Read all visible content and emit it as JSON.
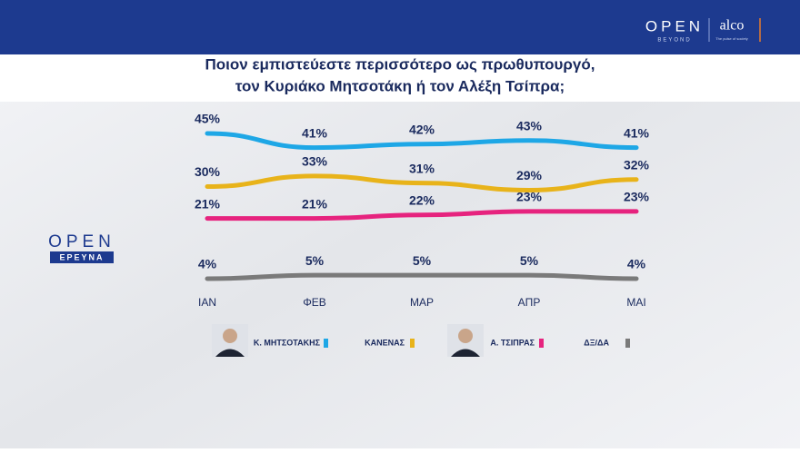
{
  "branding": {
    "open": "OPEN",
    "beyond": "BEYOND",
    "alco": "alco",
    "alco_tagline": "The pulse of society",
    "side_open": "OPEN",
    "side_research": "ΕΡΕΥΝΑ"
  },
  "chart_data": {
    "type": "line",
    "title": [
      "Ποιον εμπιστεύεστε περισσότερο ως πρωθυπουργό,",
      "τον Κυριάκο Μητσοτάκη ή τον Αλέξη Τσίπρα;"
    ],
    "categories": [
      "ΙΑΝ",
      "ΦΕΒ",
      "ΜΑΡ",
      "ΑΠΡ",
      "ΜΑΙ"
    ],
    "series": [
      {
        "name": "Κ. ΜΗΤΣΟΤΑΚΗΣ",
        "color": "#1ea7e6",
        "values": [
          45,
          41,
          42,
          43,
          41
        ],
        "value_labels": [
          "45%",
          "41%",
          "42%",
          "43%",
          "41%"
        ]
      },
      {
        "name": "ΚΑΝΕΝΑΣ",
        "color": "#e8b31a",
        "values": [
          30,
          33,
          31,
          29,
          32
        ],
        "value_labels": [
          "30%",
          "33%",
          "31%",
          "29%",
          "32%"
        ]
      },
      {
        "name": "Α. ΤΣΙΠΡΑΣ",
        "color": "#e6237e",
        "values": [
          21,
          21,
          22,
          23,
          23
        ],
        "value_labels": [
          "21%",
          "21%",
          "22%",
          "23%",
          "23%"
        ]
      },
      {
        "name": "ΔΞ/ΔΑ",
        "color": "#7a7a7a",
        "values": [
          4,
          5,
          5,
          5,
          4
        ],
        "value_labels": [
          "4%",
          "5%",
          "5%",
          "5%",
          "4%"
        ]
      }
    ]
  }
}
